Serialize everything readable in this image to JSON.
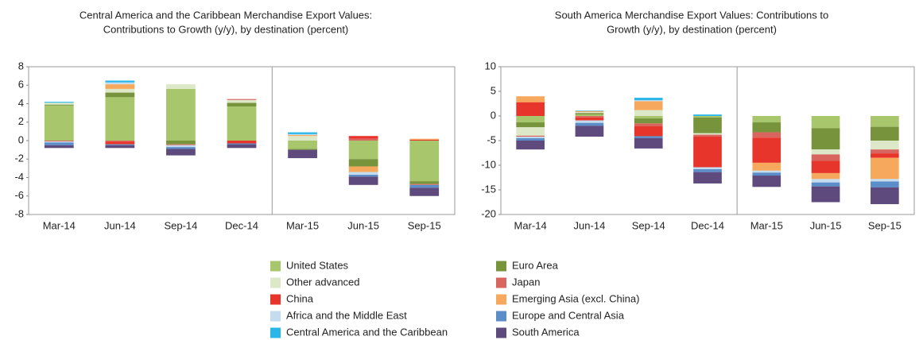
{
  "chart_data": [
    {
      "type": "bar",
      "stacked": true,
      "title": [
        "Central America and the Caribbean Merchandise Export Values:",
        "Contributions to Growth (y/y), by destination (percent)"
      ],
      "categories": [
        "Mar-14",
        "Jun-14",
        "Sep-14",
        "Dec-14",
        "Mar-15",
        "Jun-15",
        "Sep-15"
      ],
      "ylim": [
        -8,
        8
      ],
      "yticks": [
        -8,
        -6,
        -4,
        -2,
        0,
        2,
        4,
        6,
        8
      ],
      "series": [
        {
          "name": "United States",
          "color": "#a8c66c",
          "values": [
            3.8,
            4.7,
            5.6,
            3.7,
            -0.9,
            -2.0,
            -4.4
          ]
        },
        {
          "name": "Euro Area",
          "color": "#77933c",
          "values": [
            0.1,
            0.5,
            -0.4,
            0.4,
            -0.1,
            -0.8,
            -0.3
          ]
        },
        {
          "name": "Other advanced",
          "color": "#dde8c8",
          "values": [
            0.2,
            0.4,
            0.5,
            0.3,
            0.5,
            0,
            0
          ]
        },
        {
          "name": "Japan",
          "color": "#d9665e",
          "values": [
            -0.1,
            -0.1,
            -0.1,
            0.1,
            0,
            0.2,
            -0.1
          ]
        },
        {
          "name": "China",
          "color": "#e8352b",
          "values": [
            0,
            -0.3,
            0,
            -0.3,
            0,
            0.3,
            0.1
          ]
        },
        {
          "name": "Emerging Asia (excl. China)",
          "color": "#f6a95c",
          "values": [
            0,
            0.5,
            0,
            0,
            0.1,
            -0.6,
            0.1
          ]
        },
        {
          "name": "Africa and the Middle East",
          "color": "#c5dcef",
          "values": [
            -0.1,
            0.2,
            -0.2,
            0,
            0.1,
            -0.3,
            0
          ]
        },
        {
          "name": "Europe and Central Asia",
          "color": "#5b8dc9",
          "values": [
            -0.3,
            -0.1,
            -0.2,
            -0.1,
            0,
            -0.2,
            -0.3
          ]
        },
        {
          "name": "Central America and the Caribbean",
          "color": "#2ab7e8",
          "values": [
            0.1,
            0.2,
            0,
            0,
            0.2,
            0,
            0
          ]
        },
        {
          "name": "South America",
          "color": "#5e4a7d",
          "values": [
            -0.3,
            -0.3,
            -0.7,
            -0.4,
            -0.9,
            -0.9,
            -0.9
          ]
        }
      ]
    },
    {
      "type": "bar",
      "stacked": true,
      "title": [
        "South America Merchandise Export Values: Contributions to",
        "Growth (y/y), by destination (percent)"
      ],
      "categories": [
        "Mar-14",
        "Jun-14",
        "Sep-14",
        "Dec-14",
        "Mar-15",
        "Jun-15",
        "Sep-15"
      ],
      "ylim": [
        -20,
        10
      ],
      "yticks": [
        -20,
        -15,
        -10,
        -5,
        0,
        5,
        10
      ],
      "series": [
        {
          "values": [
            -1.3,
            0.3,
            -0.5,
            -0.3,
            -1.3,
            -2.5,
            -2.2
          ]
        },
        {
          "values": [
            -1.0,
            0.3,
            -1.0,
            -3.2,
            -2.0,
            -4.3,
            -2.8
          ]
        },
        {
          "values": [
            -1.7,
            0.2,
            1.2,
            -0.3,
            0,
            -1.0,
            -1.8
          ]
        },
        {
          "values": [
            -0.2,
            -0.3,
            -0.6,
            -0.4,
            -1.1,
            -1.3,
            -0.8
          ]
        },
        {
          "values": [
            2.8,
            -0.6,
            -2.0,
            -6.2,
            -5.1,
            -2.5,
            -0.9
          ]
        },
        {
          "values": [
            1.2,
            0.2,
            1.8,
            0,
            -1.6,
            -1.2,
            -4.3
          ]
        },
        {
          "values": [
            -0.3,
            -0.5,
            0.2,
            -0.4,
            -0.4,
            -0.7,
            -0.5
          ]
        },
        {
          "values": [
            -0.5,
            -0.6,
            -0.4,
            -0.6,
            -0.6,
            -0.8,
            -1.2
          ]
        },
        {
          "values": [
            0,
            0.1,
            0.5,
            0.3,
            0,
            0,
            0
          ]
        },
        {
          "values": [
            -1.8,
            -2.2,
            -2.1,
            -2.3,
            -2.3,
            -3.2,
            -3.4
          ]
        }
      ]
    }
  ]
}
